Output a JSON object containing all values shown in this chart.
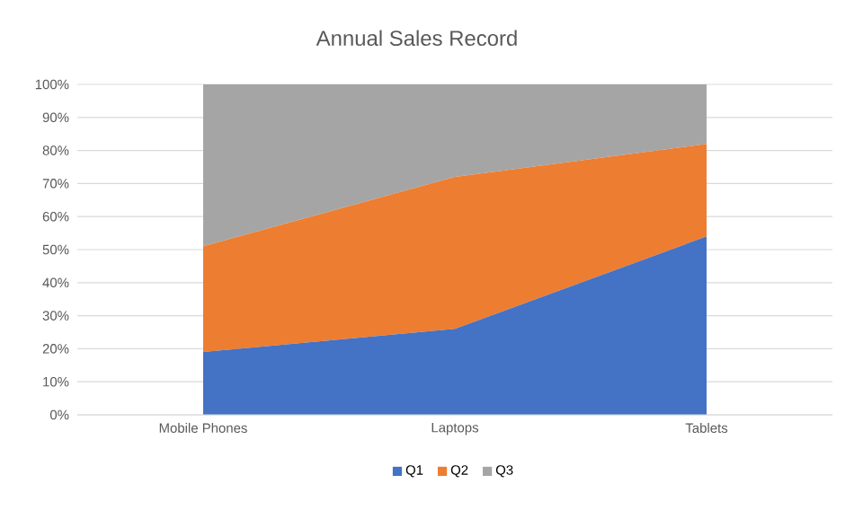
{
  "chart_data": {
    "type": "area",
    "title": "Annual Sales Record",
    "categories": [
      "Mobile Phones",
      "Laptops",
      "Tablets"
    ],
    "series": [
      {
        "name": "Q1",
        "color": "#4472c4",
        "values": [
          19,
          26,
          54
        ]
      },
      {
        "name": "Q2",
        "color": "#ed7d31",
        "values": [
          32,
          46,
          28
        ]
      },
      {
        "name": "Q3",
        "color": "#a5a5a5",
        "values": [
          49,
          28,
          18
        ]
      }
    ],
    "stacked": true,
    "ylim": [
      0,
      100
    ],
    "yticks": [
      {
        "value": 0,
        "label": "0%"
      },
      {
        "value": 10,
        "label": "10%"
      },
      {
        "value": 20,
        "label": "20%"
      },
      {
        "value": 30,
        "label": "30%"
      },
      {
        "value": 40,
        "label": "40%"
      },
      {
        "value": 50,
        "label": "50%"
      },
      {
        "value": 60,
        "label": "60%"
      },
      {
        "value": 70,
        "label": "70%"
      },
      {
        "value": 80,
        "label": "80%"
      },
      {
        "value": 90,
        "label": "90%"
      },
      {
        "value": 100,
        "label": "100%"
      }
    ],
    "grid": "y",
    "legend": "bottom"
  }
}
